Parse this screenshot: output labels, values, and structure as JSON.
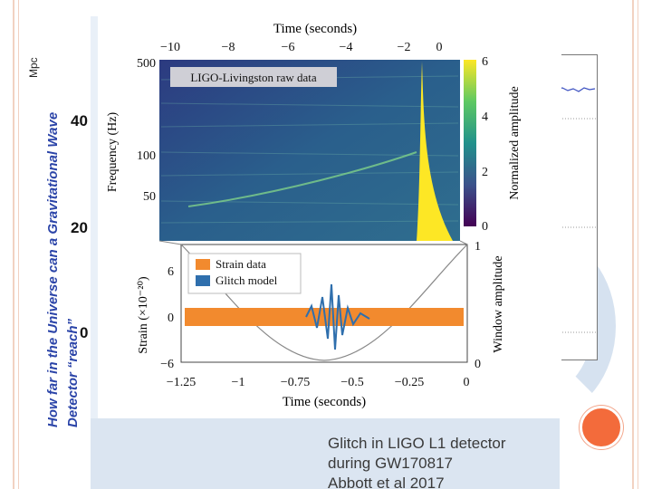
{
  "slide": {
    "background_plot": {
      "unit": "Mpc",
      "title_line1": "How far in the Universe can a Gravitational Wave",
      "title_line2": "Detector “reach”",
      "ticks": [
        "40",
        "20",
        "0"
      ]
    },
    "figure": {
      "spectrogram": {
        "panel_label": "LIGO-Livingston raw data",
        "top_axis_title": "Time (seconds)",
        "top_ticks": [
          "−10",
          "−8",
          "−6",
          "−4",
          "−2",
          "0"
        ],
        "y_axis_title": "Frequency (Hz)",
        "y_ticks": [
          "500",
          "100",
          "50"
        ],
        "colorbar_title": "Normalized amplitude",
        "colorbar_ticks": [
          "6",
          "4",
          "2",
          "0"
        ]
      },
      "strain": {
        "legend": [
          "Strain data",
          "Glitch model"
        ],
        "y_axis_title": "Strain (×10⁻²⁰)",
        "y_ticks": [
          "6",
          "0",
          "−6"
        ],
        "right_axis_title": "Window amplitude",
        "right_ticks": [
          "1",
          "0"
        ],
        "x_axis_title": "Time (seconds)",
        "x_ticks": [
          "−1.25",
          "−1",
          "−0.75",
          "−0.5",
          "−0.25",
          "0"
        ]
      }
    },
    "caption": {
      "line1": "Glitch in LIGO L1 detector",
      "line2": "during GW170817",
      "line3": "Abbott et al 2017"
    },
    "colors": {
      "accent_orange": "#f36b3b",
      "strain_orange": "#f28a2e",
      "glitch_blue": "#2f6fad",
      "title_blue": "#2b44a8"
    }
  }
}
